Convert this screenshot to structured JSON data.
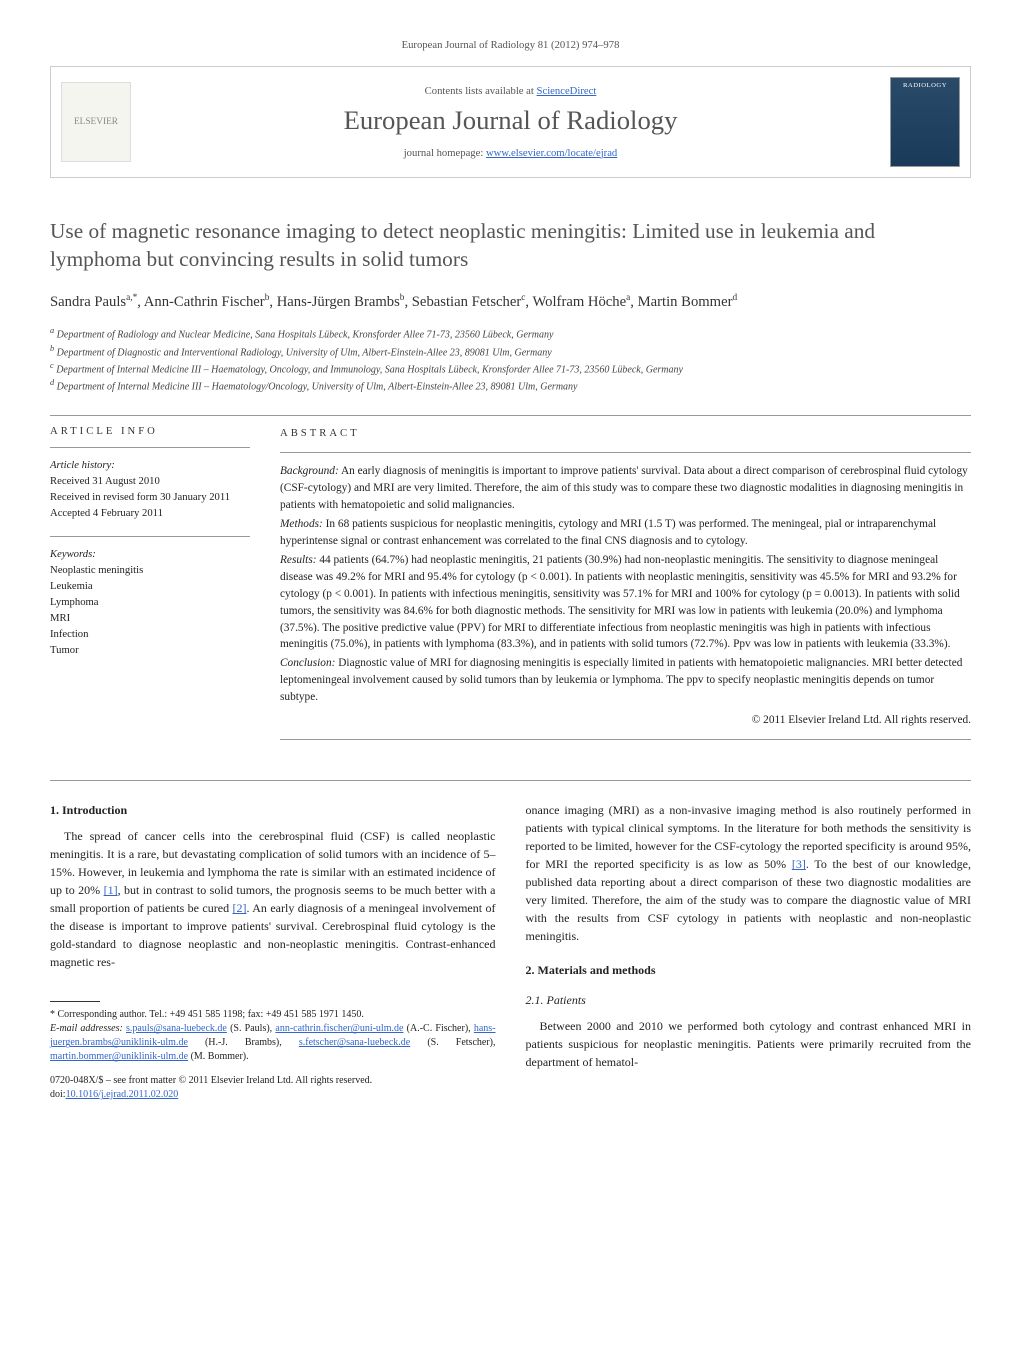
{
  "header": {
    "citation": "European Journal of Radiology 81 (2012) 974–978",
    "contentsLine": "Contents lists available at ",
    "contentsLink": "ScienceDirect",
    "journalName": "European Journal of Radiology",
    "homepageLabel": "journal homepage: ",
    "homepageUrl": "www.elsevier.com/locate/ejrad",
    "elsevierLabel": "ELSEVIER",
    "coverLabel": "RADIOLOGY"
  },
  "title": "Use of magnetic resonance imaging to detect neoplastic meningitis: Limited use in leukemia and lymphoma but convincing results in solid tumors",
  "authors": [
    {
      "name": "Sandra Pauls",
      "marks": "a,*"
    },
    {
      "name": "Ann-Cathrin Fischer",
      "marks": "b"
    },
    {
      "name": "Hans-Jürgen Brambs",
      "marks": "b"
    },
    {
      "name": "Sebastian Fetscher",
      "marks": "c"
    },
    {
      "name": "Wolfram Höche",
      "marks": "a"
    },
    {
      "name": "Martin Bommer",
      "marks": "d"
    }
  ],
  "affiliations": [
    {
      "mark": "a",
      "text": "Department of Radiology and Nuclear Medicine, Sana Hospitals Lübeck, Kronsforder Allee 71-73, 23560 Lübeck, Germany"
    },
    {
      "mark": "b",
      "text": "Department of Diagnostic and Interventional Radiology, University of Ulm, Albert-Einstein-Allee 23, 89081 Ulm, Germany"
    },
    {
      "mark": "c",
      "text": "Department of Internal Medicine III – Haematology, Oncology, and Immunology, Sana Hospitals Lübeck, Kronsforder Allee 71-73, 23560 Lübeck, Germany"
    },
    {
      "mark": "d",
      "text": "Department of Internal Medicine III – Haematology/Oncology, University of Ulm, Albert-Einstein-Allee 23, 89081 Ulm, Germany"
    }
  ],
  "articleInfo": {
    "heading": "ARTICLE INFO",
    "historyLabel": "Article history:",
    "history": [
      "Received 31 August 2010",
      "Received in revised form 30 January 2011",
      "Accepted 4 February 2011"
    ],
    "keywordsLabel": "Keywords:",
    "keywords": [
      "Neoplastic meningitis",
      "Leukemia",
      "Lymphoma",
      "MRI",
      "Infection",
      "Tumor"
    ]
  },
  "abstract": {
    "heading": "ABSTRACT",
    "sections": [
      {
        "label": "Background:",
        "text": "An early diagnosis of meningitis is important to improve patients' survival. Data about a direct comparison of cerebrospinal fluid cytology (CSF-cytology) and MRI are very limited. Therefore, the aim of this study was to compare these two diagnostic modalities in diagnosing meningitis in patients with hematopoietic and solid malignancies."
      },
      {
        "label": "Methods:",
        "text": "In 68 patients suspicious for neoplastic meningitis, cytology and MRI (1.5 T) was performed. The meningeal, pial or intraparenchymal hyperintense signal or contrast enhancement was correlated to the final CNS diagnosis and to cytology."
      },
      {
        "label": "Results:",
        "text": "44 patients (64.7%) had neoplastic meningitis, 21 patients (30.9%) had non-neoplastic meningitis. The sensitivity to diagnose meningeal disease was 49.2% for MRI and 95.4% for cytology (p < 0.001). In patients with neoplastic meningitis, sensitivity was 45.5% for MRI and 93.2% for cytology (p < 0.001). In patients with infectious meningitis, sensitivity was 57.1% for MRI and 100% for cytology (p = 0.0013). In patients with solid tumors, the sensitivity was 84.6% for both diagnostic methods. The sensitivity for MRI was low in patients with leukemia (20.0%) and lymphoma (37.5%). The positive predictive value (PPV) for MRI to differentiate infectious from neoplastic meningitis was high in patients with infectious meningitis (75.0%), in patients with lymphoma (83.3%), and in patients with solid tumors (72.7%). Ppv was low in patients with leukemia (33.3%)."
      },
      {
        "label": "Conclusion:",
        "text": "Diagnostic value of MRI for diagnosing meningitis is especially limited in patients with hematopoietic malignancies. MRI better detected leptomeningeal involvement caused by solid tumors than by leukemia or lymphoma. The ppv to specify neoplastic meningitis depends on tumor subtype."
      }
    ],
    "copyright": "© 2011 Elsevier Ireland Ltd. All rights reserved."
  },
  "body": {
    "introHeading": "1. Introduction",
    "introText": "The spread of cancer cells into the cerebrospinal fluid (CSF) is called neoplastic meningitis. It is a rare, but devastating complication of solid tumors with an incidence of 5–15%. However, in leukemia and lymphoma the rate is similar with an estimated incidence of up to 20% [1], but in contrast to solid tumors, the prognosis seems to be much better with a small proportion of patients be cured [2]. An early diagnosis of a meningeal involvement of the disease is important to improve patients' survival. Cerebrospinal fluid cytology is the gold-standard to diagnose neoplastic and non-neoplastic meningitis. Contrast-enhanced magnetic res-",
    "introContinued": "onance imaging (MRI) as a non-invasive imaging method is also routinely performed in patients with typical clinical symptoms. In the literature for both methods the sensitivity is reported to be limited, however for the CSF-cytology the reported specificity is around 95%, for MRI the reported specificity is as low as 50% [3]. To the best of our knowledge, published data reporting about a direct comparison of these two diagnostic modalities are very limited. Therefore, the aim of the study was to compare the diagnostic value of MRI with the results from CSF cytology in patients with neoplastic and non-neoplastic meningitis.",
    "methodsHeading": "2. Materials and methods",
    "patientsHeading": "2.1. Patients",
    "patientsText": "Between 2000 and 2010 we performed both cytology and contrast enhanced MRI in patients suspicious for neoplastic meningitis. Patients were primarily recruited from the department of hematol-"
  },
  "footnotes": {
    "corresponding": "* Corresponding author. Tel.: +49 451 585 1198; fax: +49 451 585 1971 1450.",
    "emailLabel": "E-mail addresses:",
    "emails": [
      {
        "addr": "s.pauls@sana-luebeck.de",
        "name": "(S. Pauls)"
      },
      {
        "addr": "ann-cathrin.fischer@uni-ulm.de",
        "name": "(A.-C. Fischer)"
      },
      {
        "addr": "hans-juergen.brambs@uniklinik-ulm.de",
        "name": "(H.-J. Brambs)"
      },
      {
        "addr": "s.fetscher@sana-luebeck.de",
        "name": "(S. Fetscher)"
      },
      {
        "addr": "martin.bommer@uniklinik-ulm.de",
        "name": "(M. Bommer)"
      }
    ]
  },
  "doi": {
    "line1": "0720-048X/$ – see front matter © 2011 Elsevier Ireland Ltd. All rights reserved.",
    "line2label": "doi:",
    "line2": "10.1016/j.ejrad.2011.02.020"
  },
  "refs": {
    "r1": "[1]",
    "r2": "[2]",
    "r3": "[3]"
  }
}
